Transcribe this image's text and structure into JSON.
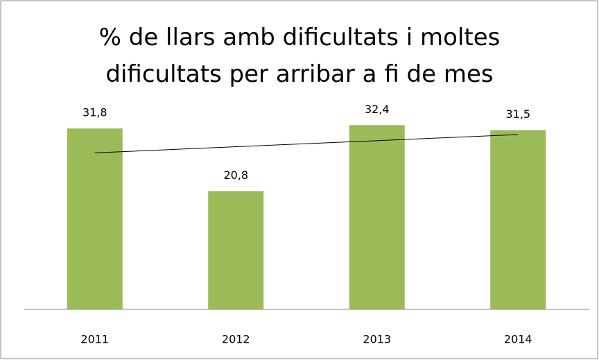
{
  "chart_data": {
    "type": "bar",
    "title": "% de llars amb dificultats i moltes dificultats per arribar a fi de mes",
    "categories": [
      "2011",
      "2012",
      "2013",
      "2014"
    ],
    "values": [
      31.8,
      20.8,
      32.4,
      31.5
    ],
    "value_labels": [
      "31,8",
      "20,8",
      "32,4",
      "31,5"
    ],
    "color": "#9bbb59",
    "ylim": [
      0,
      35
    ],
    "trendline": true
  }
}
